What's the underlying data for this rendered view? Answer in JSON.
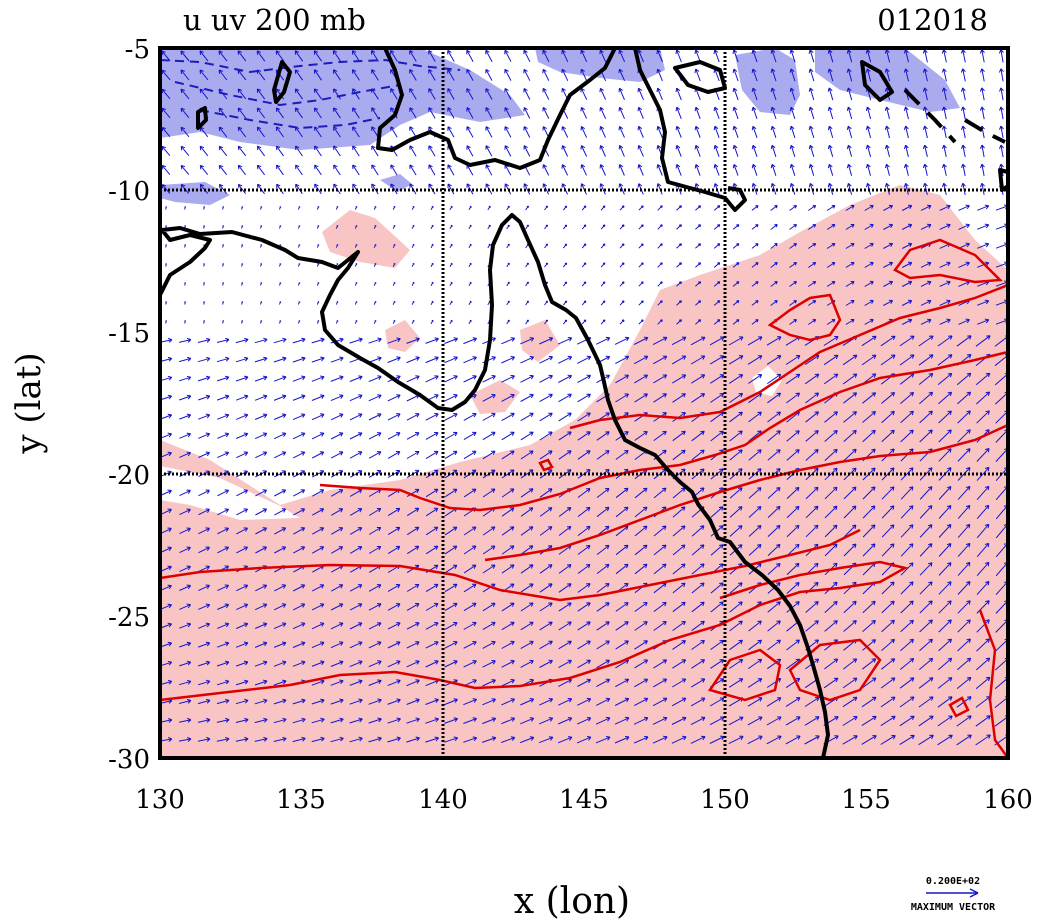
{
  "title": "u uv 200 mb",
  "date": "012018",
  "x_axis": {
    "label": "x (lon)",
    "ticks": [
      "130",
      "135",
      "140",
      "145",
      "150",
      "155",
      "160"
    ]
  },
  "y_axis": {
    "label": "y (lat)",
    "ticks": [
      "-5",
      "-10",
      "-15",
      "-20",
      "-25",
      "-30"
    ]
  },
  "vector_key": {
    "value_label": "0.200E+02",
    "caption": "MAXIMUM VECTOR"
  },
  "colors": {
    "positive_shading": "#f8c4c4",
    "negative_shading": "#aaaaee",
    "positive_contour": "#dd0000",
    "negative_contour": "#1c1cbb",
    "vectors": "#1515cc",
    "coastline": "#000000"
  },
  "map": {
    "projection": "lat-lon",
    "lon_range": [
      130,
      160
    ],
    "lat_range": [
      -30,
      -5
    ],
    "grid_lon": [
      140,
      150
    ],
    "grid_lat": [
      -10,
      -20
    ],
    "shading": "positive u shaded pink, negative u shaded blue"
  }
}
